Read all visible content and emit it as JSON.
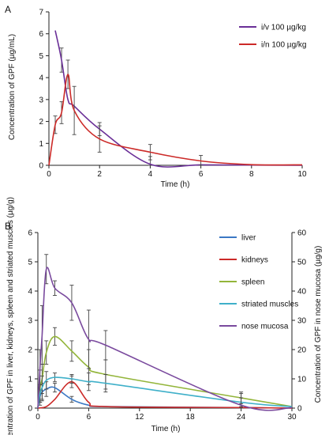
{
  "chart_data": [
    {
      "panel_label": "A",
      "type": "line",
      "xlabel": "Time (h)",
      "ylabel": "Concentration of GPF (µg/mL)",
      "xlim": [
        0,
        10
      ],
      "ylim": [
        0,
        7
      ],
      "x_ticks": [
        "0",
        "2",
        "4",
        "6",
        "8",
        "10"
      ],
      "y_ticks": [
        "0",
        "1",
        "2",
        "3",
        "4",
        "5",
        "6",
        "7"
      ],
      "legend_position": "top-right",
      "grid": false,
      "series": [
        {
          "name": "i/v 100 µg/kg",
          "color": "#6a2f97",
          "x": [
            0.25,
            0.5,
            0.75,
            1,
            2,
            4,
            6,
            8,
            10
          ],
          "y": [
            6.15,
            4.8,
            3.0,
            2.7,
            1.65,
            0.05,
            0.02,
            0.01,
            0.0
          ],
          "errors": [
            null,
            0.55,
            null,
            null,
            0.3,
            0.35,
            null,
            null,
            null
          ]
        },
        {
          "name": "i/n 100 µg/kg",
          "color": "#cc2a28",
          "x": [
            0,
            0.25,
            0.5,
            0.75,
            1,
            2,
            4,
            6,
            8,
            10
          ],
          "y": [
            0,
            1.85,
            2.4,
            4.15,
            2.5,
            1.2,
            0.6,
            0.2,
            0.03,
            0.02
          ],
          "errors": [
            null,
            0.4,
            0.5,
            0.65,
            1.1,
            0.6,
            0.35,
            0.25,
            null,
            null
          ]
        }
      ]
    },
    {
      "panel_label": "B",
      "type": "line",
      "xlabel": "Time (h)",
      "ylabel": "Concentration of GPF in liver, kidneys, spleen and striated muscles (µg/g)",
      "y2label": "Concentration of GPF in nose mucosa (µg/g)",
      "xlim": [
        0,
        30
      ],
      "ylim": [
        0,
        6
      ],
      "y2lim": [
        0,
        60
      ],
      "x_ticks": [
        "0",
        "6",
        "12",
        "18",
        "24",
        "30"
      ],
      "y_ticks": [
        "0",
        "1",
        "2",
        "3",
        "4",
        "5",
        "6"
      ],
      "y2_ticks": [
        "0",
        "10",
        "20",
        "30",
        "40",
        "50",
        "60"
      ],
      "legend_position": "right",
      "grid": false,
      "series": [
        {
          "name": "liver",
          "color": "#3b78c4",
          "axis": "left",
          "x": [
            0,
            0.25,
            0.5,
            1,
            2,
            4,
            6,
            8,
            24,
            30
          ],
          "y": [
            0,
            0.4,
            0.55,
            0.65,
            0.7,
            0.3,
            0.1,
            0.05,
            0.02,
            0.0
          ],
          "errors": [
            null,
            0.2,
            0.3,
            0.25,
            0.15,
            0.1,
            null,
            null,
            null,
            null
          ]
        },
        {
          "name": "kidneys",
          "color": "#cc2a28",
          "axis": "left",
          "x": [
            0,
            1,
            2,
            4,
            6,
            8,
            24,
            30
          ],
          "y": [
            0,
            0.05,
            0.3,
            0.9,
            0.2,
            0.05,
            0.02,
            0.0
          ],
          "errors": [
            null,
            null,
            null,
            0.2,
            null,
            null,
            null,
            null
          ]
        },
        {
          "name": "spleen",
          "color": "#93b53a",
          "axis": "left",
          "x": [
            0,
            0.25,
            0.5,
            1,
            2,
            4,
            6,
            8,
            24,
            30
          ],
          "y": [
            0,
            0.7,
            1.0,
            1.9,
            2.45,
            1.95,
            1.4,
            1.15,
            0.35,
            0.05
          ],
          "errors": [
            null,
            0.6,
            0.5,
            0.4,
            0.3,
            0.35,
            0.6,
            0.5,
            0.2,
            null
          ]
        },
        {
          "name": "striated muscles",
          "color": "#3fb0c9",
          "axis": "left",
          "x": [
            0,
            0.25,
            0.5,
            1,
            2,
            4,
            6,
            8,
            24,
            30
          ],
          "y": [
            0,
            0.5,
            0.7,
            0.95,
            1.05,
            1.0,
            0.9,
            0.85,
            0.2,
            0.05
          ],
          "errors": [
            null,
            0.3,
            0.4,
            0.3,
            0.15,
            0.15,
            0.3,
            0.3,
            0.15,
            null
          ]
        },
        {
          "name": "nose mucosa",
          "color": "#7a4a9e",
          "axis": "right",
          "x": [
            0,
            0.25,
            0.5,
            1,
            2,
            4,
            6,
            8,
            24,
            30
          ],
          "y": [
            0,
            14,
            25,
            47.5,
            41,
            36,
            23.5,
            21.5,
            1,
            0.2
          ],
          "errors": [
            null,
            6,
            10,
            5,
            2.5,
            6,
            10,
            5,
            4,
            null
          ]
        }
      ]
    }
  ]
}
